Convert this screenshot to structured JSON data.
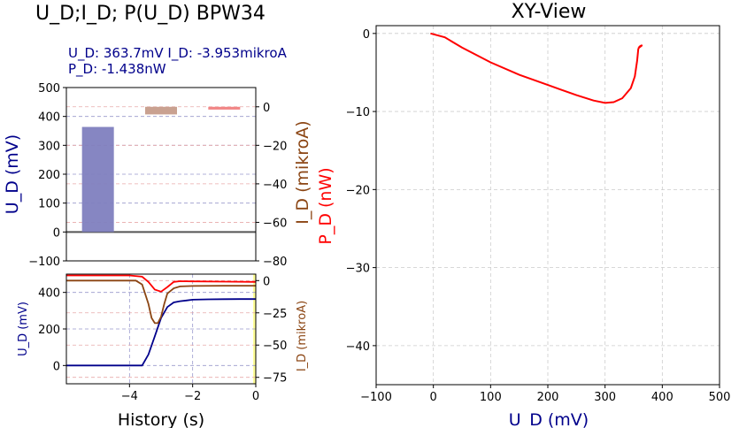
{
  "colors": {
    "voltage": "#00008B",
    "current": "#8B4513",
    "power": "#FF0000",
    "bar_voltage": "#7F7FBF",
    "bar_current": "#C69C8A",
    "bar_power": "#F08080",
    "grid_blue": "#9999CC",
    "grid_red": "#E8AAAA",
    "grid_gray": "#CCCCCC",
    "highlight": "#FFFF99"
  },
  "left_title": "U_D;I_D; P(U_D) BPW34",
  "readout": {
    "line1": "U_D:  363.7mV  I_D: -3.953mikroA",
    "line2": "P_D: -1.438nW"
  },
  "chart_data": [
    {
      "type": "bar",
      "categories": [
        "U_D",
        "I_D",
        "P_D"
      ],
      "series": [
        {
          "name": "U_D",
          "values": [
            363.7,
            null,
            null
          ],
          "axis": "left"
        },
        {
          "name": "I_D",
          "values": [
            null,
            -3.953,
            null
          ],
          "axis": "right"
        },
        {
          "name": "P_D",
          "values": [
            null,
            null,
            -1.438
          ],
          "axis": "right"
        }
      ],
      "ylabel_left": "U_D (mV)",
      "ylabel_right": "I_D (mikroA)",
      "ylabel_right2": "P_D  (nW)",
      "ylim_left": [
        -100,
        500
      ],
      "ylim_right": [
        -80,
        10
      ],
      "yticks_left": [
        "−100",
        "0",
        "100",
        "200",
        "300",
        "400",
        "500"
      ],
      "yticks_right": [
        "−80",
        "−60",
        "−40",
        "−20",
        "0"
      ],
      "grid": true
    },
    {
      "type": "line",
      "xlabel": "History (s)",
      "ylabel_left": "U_D (mV)",
      "ylabel_right": "I_D (mikroA)",
      "xlim": [
        -6,
        0
      ],
      "ylim_left": [
        -100,
        500
      ],
      "ylim_right": [
        -80,
        5
      ],
      "xticks": [
        "−4",
        "−2",
        "0"
      ],
      "yticks_left": [
        "0",
        "200",
        "400"
      ],
      "yticks_right": [
        "−75",
        "−50",
        "−25",
        "0"
      ],
      "series": [
        {
          "name": "U_D",
          "axis": "left",
          "x": [
            -6,
            -4.8,
            -3.6,
            -3.4,
            -3.2,
            -3.0,
            -2.8,
            -2.6,
            -2.4,
            -2.2,
            -2.0,
            -1.5,
            -1.0,
            -0.5,
            0
          ],
          "y": [
            0,
            0,
            0,
            60,
            160,
            260,
            320,
            345,
            352,
            356,
            360,
            362,
            363,
            363.5,
            363.7
          ]
        },
        {
          "name": "I_D",
          "axis": "right",
          "x": [
            -6,
            -4.8,
            -3.8,
            -3.6,
            -3.4,
            -3.3,
            -3.2,
            -3.1,
            -3.0,
            -2.9,
            -2.8,
            -2.6,
            -2.4,
            -2.0,
            -1.0,
            0
          ],
          "y": [
            0,
            0,
            0,
            -3,
            -18,
            -29,
            -33,
            -33,
            -28,
            -18,
            -10,
            -6,
            -4.5,
            -4.2,
            -4.0,
            -3.95
          ]
        },
        {
          "name": "P_D",
          "axis": "right",
          "x": [
            -6,
            -4.0,
            -3.6,
            -3.4,
            -3.2,
            -3.0,
            -2.8,
            -2.6,
            -2.4,
            -2.0,
            -1.0,
            0
          ],
          "y": [
            4,
            4,
            3,
            -1,
            -7,
            -8.6,
            -5,
            -1,
            -0.5,
            -0.6,
            -0.8,
            -1.0
          ]
        }
      ],
      "grid": true
    },
    {
      "type": "line",
      "title": "XY-View",
      "xlabel": "U_D  (mV)",
      "ylabel": "P_D  (nW)",
      "xlim": [
        -100,
        500
      ],
      "ylim": [
        -45,
        1
      ],
      "xticks": [
        "−100",
        "0",
        "100",
        "200",
        "300",
        "400",
        "500"
      ],
      "yticks": [
        "−40",
        "−30",
        "−20",
        "−10",
        "0"
      ],
      "series": [
        {
          "name": "P_D vs U_D",
          "x": [
            -5,
            0,
            20,
            50,
            100,
            150,
            200,
            250,
            280,
            300,
            315,
            330,
            345,
            352,
            356,
            358,
            360,
            362,
            365,
            358,
            363
          ],
          "y": [
            0,
            -0.1,
            -0.5,
            -1.8,
            -3.7,
            -5.3,
            -6.6,
            -7.9,
            -8.6,
            -8.9,
            -8.8,
            -8.3,
            -7.0,
            -5.5,
            -3.5,
            -2.0,
            -1.7,
            -1.6,
            -1.5,
            -1.9,
            -1.6
          ]
        }
      ],
      "grid": true
    }
  ]
}
